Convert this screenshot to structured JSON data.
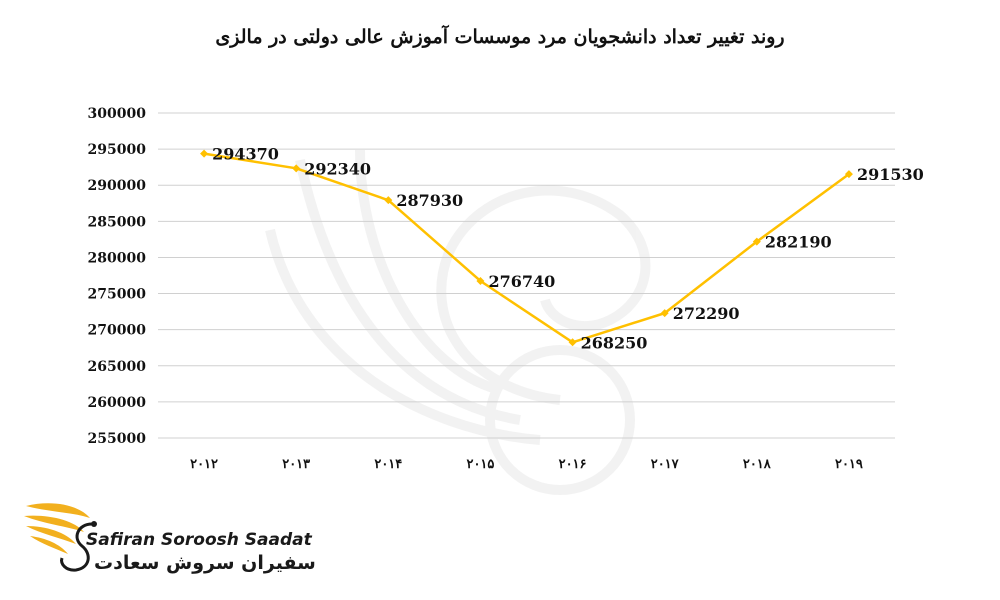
{
  "chart_data": {
    "type": "line",
    "title": "روند تغییر تعداد دانشجویان مرد موسسات آموزش عالی دولتی در مالزی",
    "categories": [
      "۲۰۱۲",
      "۲۰۱۳",
      "۲۰۱۴",
      "۲۰۱۵",
      "۲۰۱۶",
      "۲۰۱۷",
      "۲۰۱۸",
      "۲۰۱۹"
    ],
    "series": [
      {
        "values": [
          294370,
          292340,
          287930,
          276740,
          268250,
          272290,
          282190,
          291530
        ],
        "color": "#FFC000"
      }
    ],
    "yticks": [
      "255000",
      "260000",
      "265000",
      "270000",
      "275000",
      "280000",
      "285000",
      "290000",
      "295000",
      "300000"
    ],
    "ylim": [
      255000,
      300000
    ],
    "grid": true,
    "data_labels": true
  },
  "brand": {
    "name_en": "Safiran Soroosh Saadat",
    "name_fa": "سفیران سروش سعادت",
    "accent_color": "#F2B01E"
  }
}
